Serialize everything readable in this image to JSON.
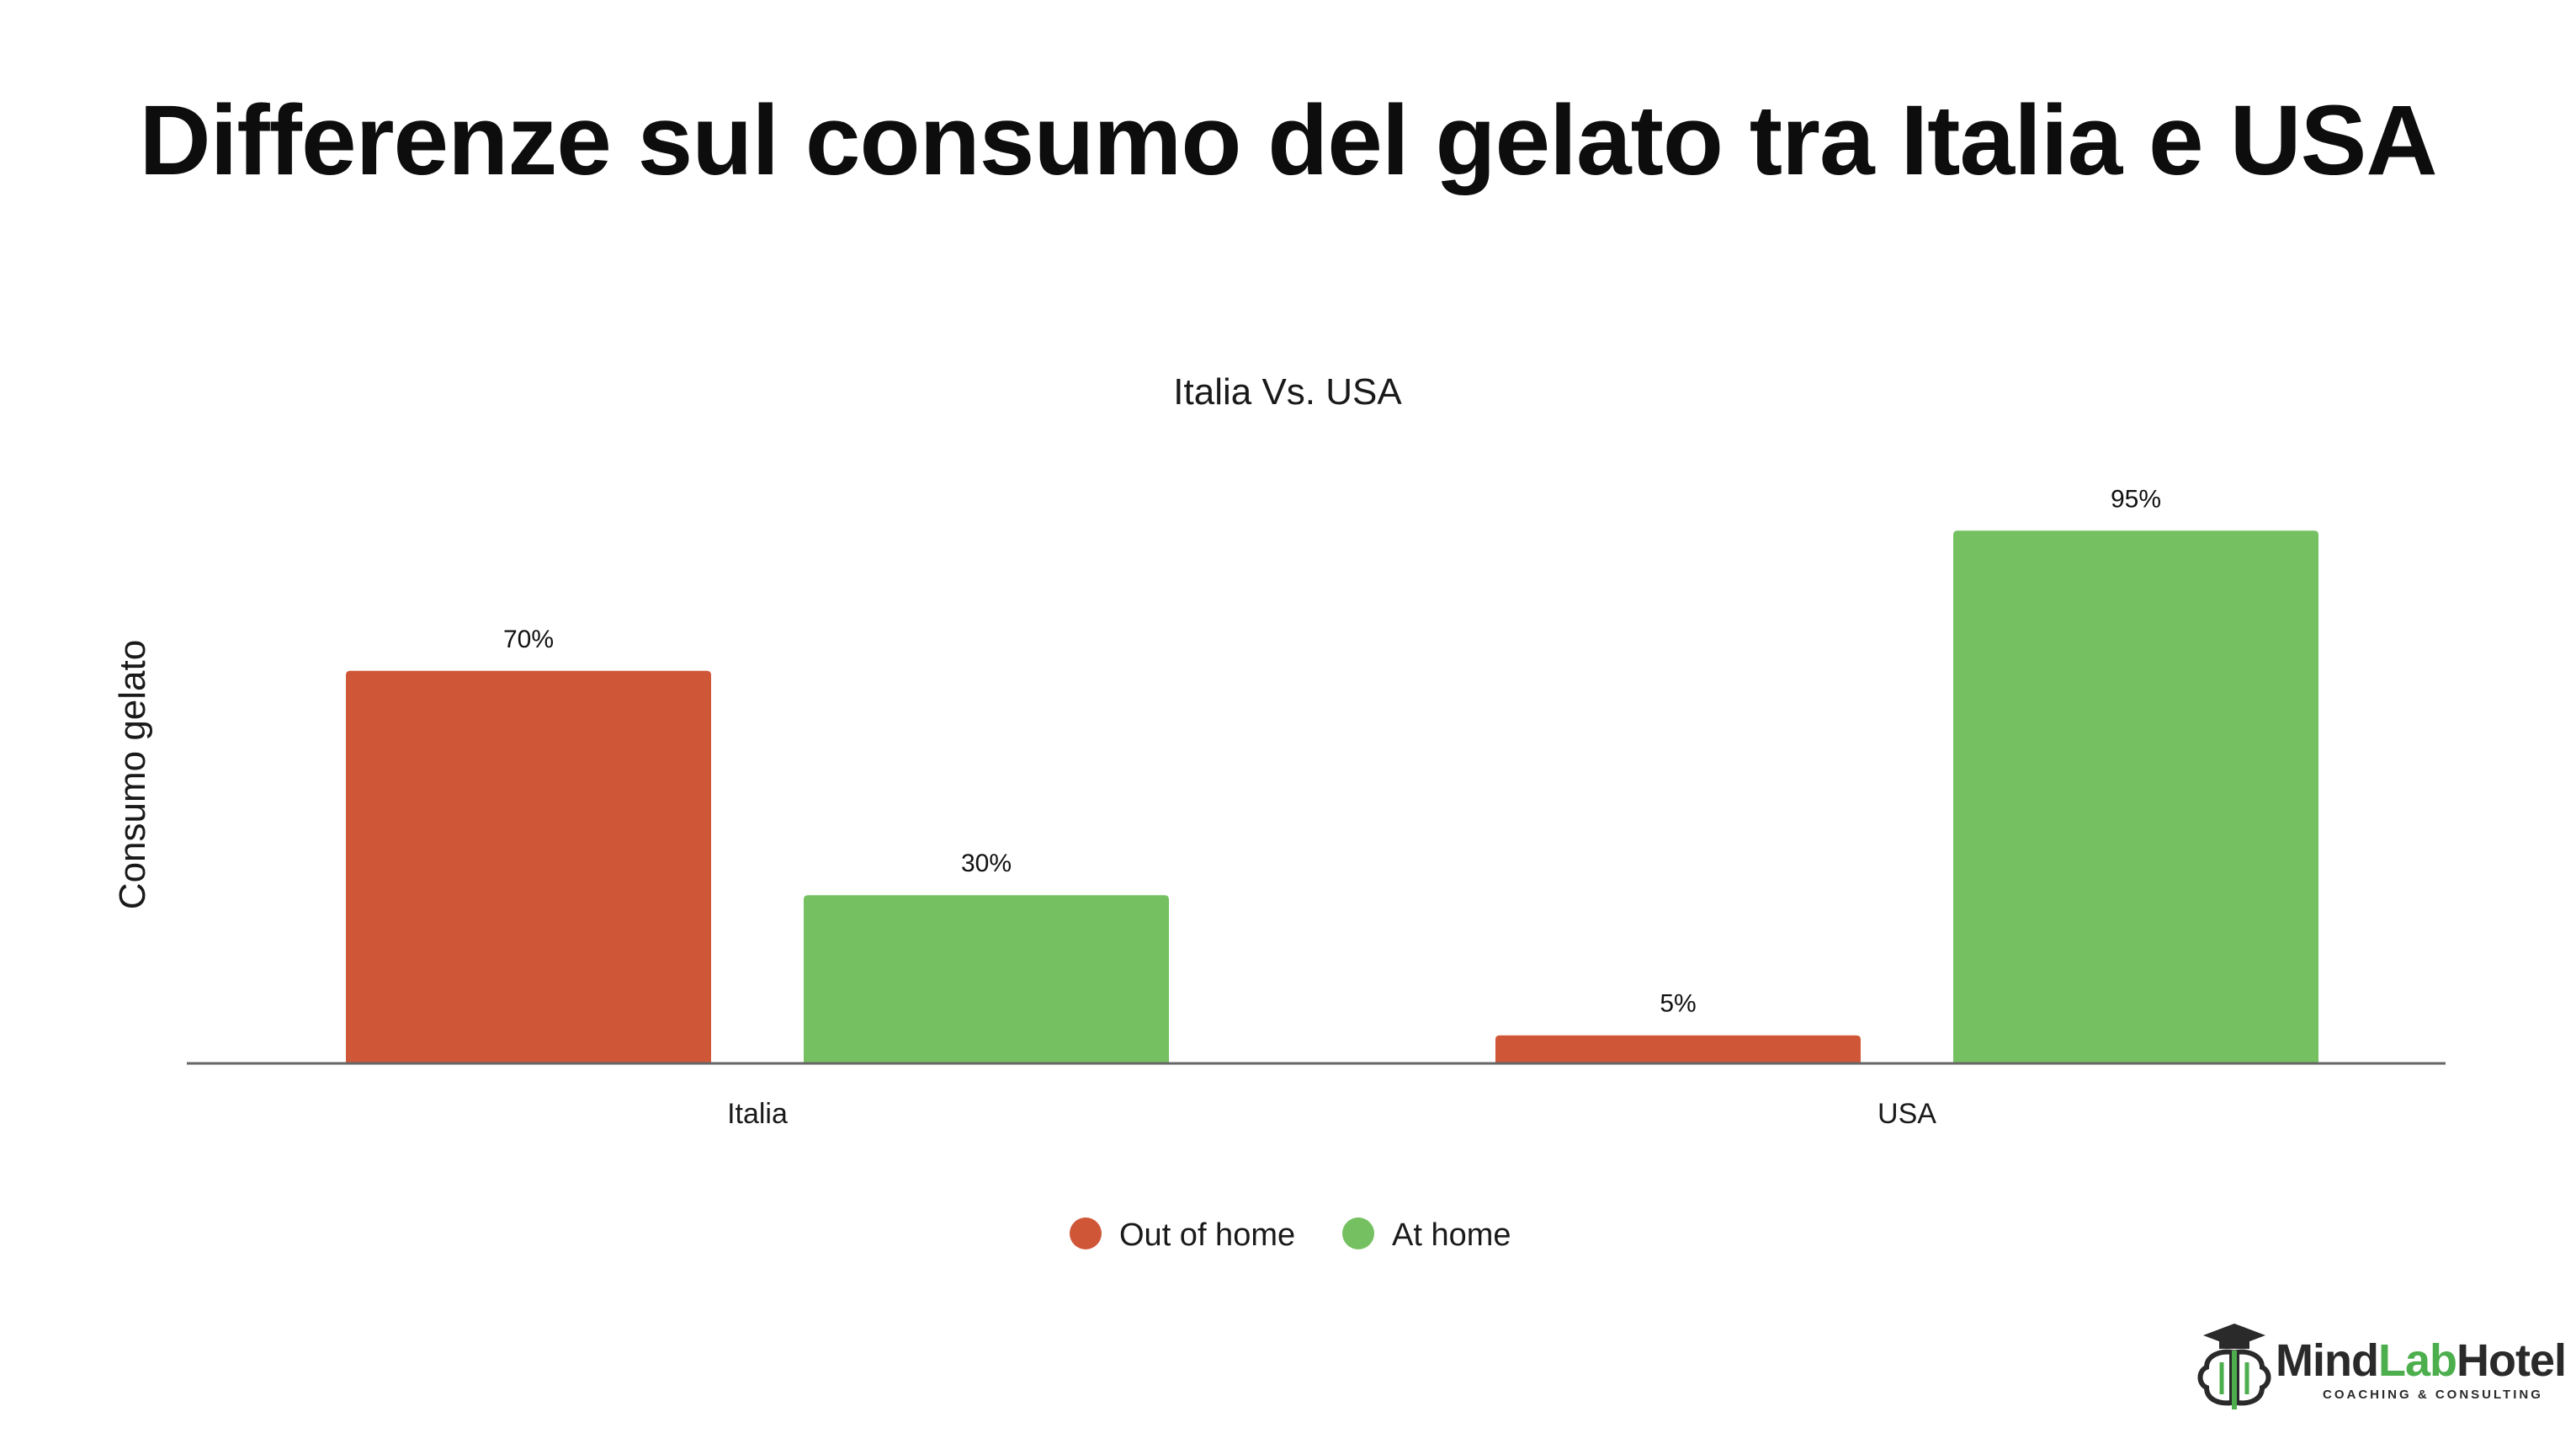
{
  "page": {
    "headline": "Differenze sul consumo del gelato tra Italia e USA"
  },
  "chart_data": {
    "type": "bar",
    "title": "Italia Vs. USA",
    "xlabel": "",
    "ylabel": "Consumo gelato",
    "categories": [
      "Italia",
      "USA"
    ],
    "series": [
      {
        "name": "Out of home",
        "values": [
          70,
          5
        ],
        "labels": [
          "70%",
          "5%"
        ],
        "color": "#d05638"
      },
      {
        "name": "At home",
        "values": [
          30,
          95
        ],
        "labels": [
          "30%",
          "95%"
        ],
        "color": "#75c162"
      }
    ],
    "ylim": [
      0,
      100
    ],
    "grid": false,
    "legend": "bottom",
    "axis_color": "#666666"
  },
  "brand": {
    "name_part1": "Mind",
    "name_part2": "Lab",
    "name_part3": "Hotel",
    "tagline": "COACHING & CONSULTING",
    "icon": "brain-graduation-cap-icon",
    "colors": {
      "dark": "#2a2a2a",
      "green": "#4cae4c"
    }
  }
}
